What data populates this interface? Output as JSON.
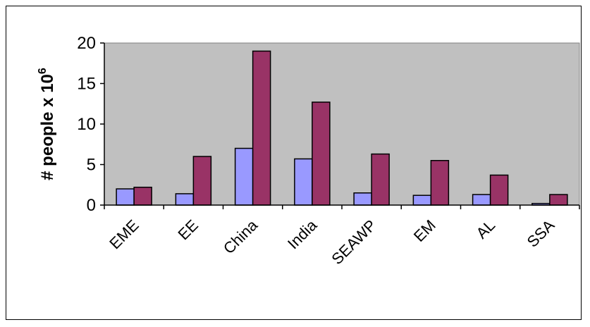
{
  "chart_data": {
    "type": "bar",
    "title": "",
    "xlabel": "",
    "ylabel": "# people x 10",
    "ylabel_superscript": "6",
    "categories": [
      "EME",
      "EE",
      "China",
      "India",
      "SEAWP",
      "EM",
      "AL",
      "SSA"
    ],
    "series": [
      {
        "color": "#9999ff",
        "values": [
          2.0,
          1.4,
          7.0,
          5.7,
          1.5,
          1.2,
          1.3,
          0.2
        ]
      },
      {
        "color": "#993366",
        "values": [
          2.2,
          6.0,
          19.0,
          12.7,
          6.3,
          5.5,
          3.7,
          1.3
        ]
      }
    ],
    "ylim": [
      0,
      20
    ],
    "yticks": [
      0,
      5,
      10,
      15,
      20
    ],
    "grid": false,
    "plot_background": "#c0c0c0",
    "legend": "none"
  }
}
